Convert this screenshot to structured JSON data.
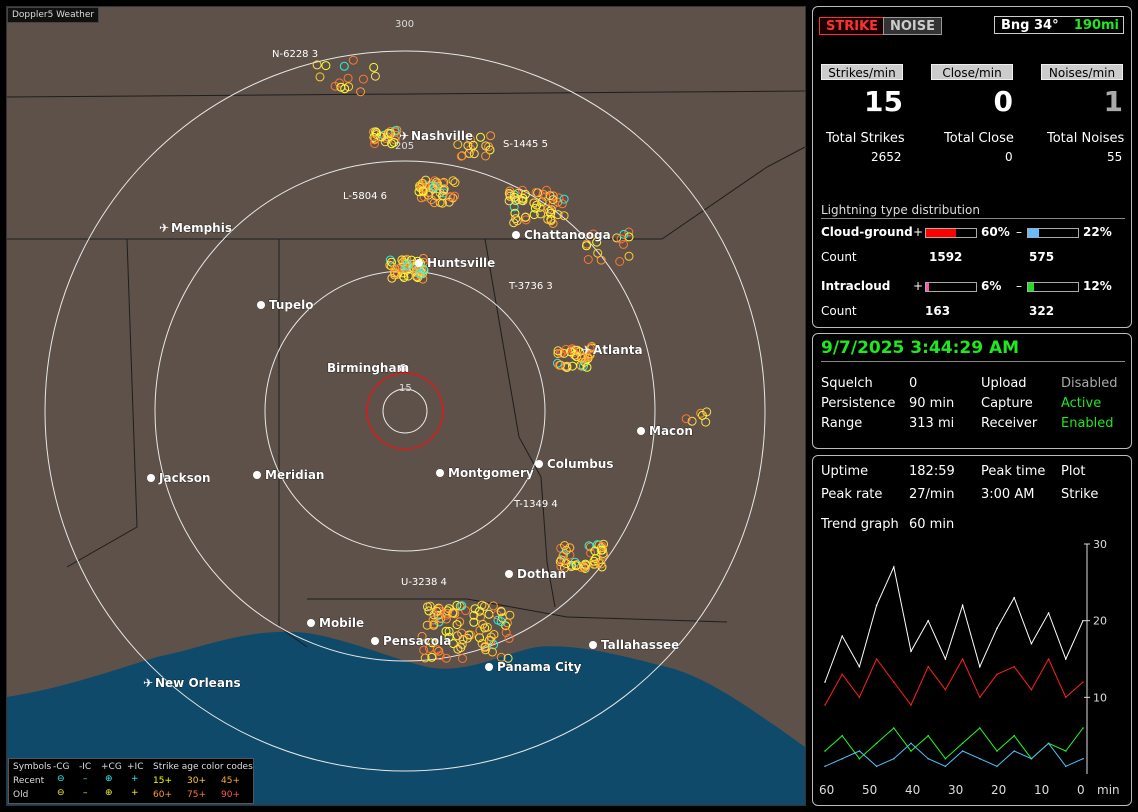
{
  "app_title": "Doppler5 Weather",
  "map": {
    "range_labels": [
      "300",
      "205",
      "15"
    ],
    "cities": [
      {
        "name": "Nashville",
        "type": "airport"
      },
      {
        "name": "Memphis",
        "type": "airport"
      },
      {
        "name": "Chattanooga",
        "type": "city"
      },
      {
        "name": "Huntsville",
        "type": "city"
      },
      {
        "name": "Tupelo",
        "type": "city"
      },
      {
        "name": "Birmingham",
        "type": "city"
      },
      {
        "name": "Atlanta",
        "type": "airport"
      },
      {
        "name": "Macon",
        "type": "city"
      },
      {
        "name": "Jackson",
        "type": "city"
      },
      {
        "name": "Meridian",
        "type": "city"
      },
      {
        "name": "Montgomery",
        "type": "city"
      },
      {
        "name": "Columbus",
        "type": "city"
      },
      {
        "name": "Dothan",
        "type": "city"
      },
      {
        "name": "Mobile",
        "type": "city"
      },
      {
        "name": "Pensacola",
        "type": "city"
      },
      {
        "name": "Panama City",
        "type": "city"
      },
      {
        "name": "Tallahassee",
        "type": "city"
      },
      {
        "name": "New Orleans",
        "type": "airport"
      }
    ],
    "storm_tags": [
      "N-6228 3",
      "S-1445 5",
      "L-5804 6",
      "T-3736 3",
      "T-1349 4",
      "U-3238 4"
    ]
  },
  "legend": {
    "symbols_label": "Symbols",
    "cg_minus": "-CG",
    "ic_minus": "-IC",
    "cg_plus": "+CG",
    "ic_plus": "+IC",
    "age_label": "Strike age color codes",
    "recent": "Recent",
    "old": "Old",
    "recent_ages": [
      "15+",
      "30+",
      "45+"
    ],
    "old_ages": [
      "60+",
      "75+",
      "90+"
    ]
  },
  "controls": {
    "strike": "STRIKE",
    "noise": "NOISE",
    "bearing": "Bng 34°",
    "distance": "190mi"
  },
  "rates": {
    "strikes_hdr": "Strikes/min",
    "close_hdr": "Close/min",
    "noises_hdr": "Noises/min",
    "strikes": "15",
    "close": "0",
    "noises": "1",
    "total_strikes_lbl": "Total Strikes",
    "total_close_lbl": "Total Close",
    "total_noises_lbl": "Total Noises",
    "total_strikes": "2652",
    "total_close": "0",
    "total_noises": "55"
  },
  "distribution": {
    "title": "Lightning type distribution",
    "cg_label": "Cloud-ground",
    "ic_label": "Intracloud",
    "count_label": "Count",
    "plus": "+",
    "minus": "–",
    "cg_plus_pct": "60%",
    "cg_minus_pct": "22%",
    "ic_plus_pct": "6%",
    "ic_minus_pct": "12%",
    "cg_plus_count": "1592",
    "cg_minus_count": "575",
    "ic_plus_count": "163",
    "ic_minus_count": "322",
    "cg_plus_fill": 0.6,
    "cg_minus_fill": 0.22,
    "ic_plus_fill": 0.06,
    "ic_minus_fill": 0.12
  },
  "status": {
    "datetime": "9/7/2025 3:44:29 AM",
    "squelch_lbl": "Squelch",
    "squelch": "0",
    "persistence_lbl": "Persistence",
    "persistence": "90 min",
    "range_lbl": "Range",
    "range": "313 mi",
    "upload_lbl": "Upload",
    "upload": "Disabled",
    "capture_lbl": "Capture",
    "capture": "Active",
    "receiver_lbl": "Receiver",
    "receiver": "Enabled"
  },
  "trend": {
    "uptime_lbl": "Uptime",
    "uptime": "182:59",
    "peak_time_lbl": "Peak time",
    "peak_time": "3:00 AM",
    "plot_lbl": "Plot",
    "plot": "Strike",
    "peak_rate_lbl": "Peak rate",
    "peak_rate": "27/min",
    "graph_lbl": "Trend graph",
    "graph_span": "60 min",
    "y_ticks": [
      "30",
      "20",
      "10"
    ],
    "x_ticks": [
      "60",
      "50",
      "40",
      "30",
      "20",
      "10",
      "0"
    ],
    "x_unit": "min"
  },
  "chart_data": {
    "type": "line",
    "x": [
      60,
      56,
      52,
      48,
      44,
      40,
      36,
      32,
      28,
      24,
      20,
      16,
      12,
      8,
      4,
      0
    ],
    "xlabel": "min",
    "ylim": [
      0,
      30
    ],
    "series": [
      {
        "values": [
          12,
          18,
          14,
          22,
          27,
          16,
          20,
          15,
          22,
          14,
          19,
          23,
          17,
          21,
          15,
          20
        ],
        "color": "#ffffff"
      },
      {
        "values": [
          9,
          13,
          10,
          15,
          12,
          9,
          14,
          11,
          15,
          10,
          13,
          14,
          11,
          15,
          10,
          12
        ],
        "color": "#ff2020"
      },
      {
        "values": [
          3,
          5,
          2,
          4,
          6,
          3,
          5,
          2,
          4,
          6,
          3,
          5,
          2,
          4,
          3,
          6
        ],
        "color": "#20ff20"
      },
      {
        "values": [
          1,
          2,
          3,
          1,
          2,
          4,
          2,
          1,
          3,
          2,
          1,
          3,
          2,
          4,
          1,
          2
        ],
        "color": "#4fc3ff"
      }
    ]
  }
}
